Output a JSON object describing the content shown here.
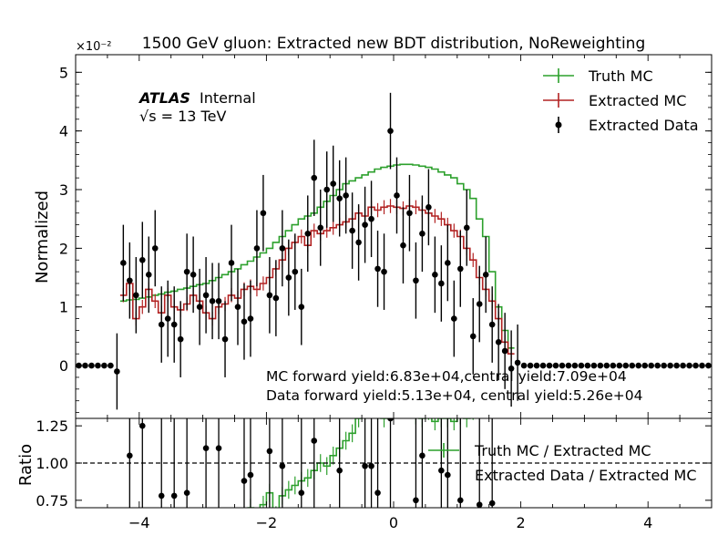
{
  "chart_data": [
    {
      "type": "histogram-step",
      "title": "1500 GeV gluon: Extracted new BDT distribution, NoReweighting",
      "scale_label": "×10⁻²",
      "ylabel": "Normalized",
      "xlim": [
        -5,
        5
      ],
      "ylim": [
        -0.9,
        5.3
      ],
      "yticks": [
        0,
        1,
        2,
        3,
        4,
        5
      ],
      "atlas_bold": "ATLAS",
      "atlas_rest": "Internal",
      "energy_label": "√s = 13 TeV",
      "annotations": [
        "MC forward yield:6.83e+04,central yield:7.09e+04",
        "Data forward yield:5.13e+04, central yield:5.26e+04"
      ],
      "legend_position": "top-right",
      "series": [
        {
          "name": "Truth MC",
          "color": "#2ca02c",
          "kind": "step",
          "x_start": -4.3,
          "x_step": 0.1,
          "values": [
            1.1,
            1.12,
            1.13,
            1.15,
            1.17,
            1.2,
            1.22,
            1.25,
            1.27,
            1.3,
            1.32,
            1.35,
            1.38,
            1.4,
            1.45,
            1.5,
            1.55,
            1.6,
            1.65,
            1.72,
            1.78,
            1.85,
            1.92,
            2.0,
            2.1,
            2.2,
            2.3,
            2.4,
            2.5,
            2.55,
            2.6,
            2.7,
            2.8,
            2.9,
            3.0,
            3.1,
            3.15,
            3.2,
            3.25,
            3.3,
            3.35,
            3.38,
            3.4,
            3.42,
            3.43,
            3.43,
            3.42,
            3.4,
            3.38,
            3.35,
            3.3,
            3.25,
            3.2,
            3.1,
            3.0,
            2.85,
            2.5,
            2.2,
            1.6,
            1.0,
            0.6,
            0.3
          ]
        },
        {
          "name": "Extracted MC",
          "color": "#b22222",
          "kind": "step",
          "x_start": -4.3,
          "x_step": 0.1,
          "values": [
            1.2,
            1.4,
            0.8,
            1.0,
            1.3,
            1.1,
            0.9,
            1.2,
            1.0,
            0.95,
            1.05,
            1.2,
            1.1,
            0.9,
            0.8,
            1.0,
            1.05,
            1.2,
            1.15,
            1.3,
            1.35,
            1.3,
            1.4,
            1.5,
            1.65,
            1.8,
            2.0,
            2.1,
            2.2,
            2.05,
            2.3,
            2.25,
            2.3,
            2.35,
            2.4,
            2.45,
            2.5,
            2.6,
            2.55,
            2.7,
            2.65,
            2.7,
            2.72,
            2.7,
            2.68,
            2.72,
            2.7,
            2.65,
            2.6,
            2.55,
            2.5,
            2.4,
            2.3,
            2.2,
            2.0,
            1.8,
            1.5,
            1.3,
            1.1,
            0.8,
            0.4,
            0.2
          ]
        },
        {
          "name": "Extracted Data",
          "color": "#000000",
          "kind": "points",
          "points": [
            [
              -4.95,
              0
            ],
            [
              -4.85,
              0
            ],
            [
              -4.75,
              0
            ],
            [
              -4.65,
              0
            ],
            [
              -4.55,
              0
            ],
            [
              -4.45,
              0
            ],
            [
              -4.35,
              -0.1
            ],
            [
              -4.25,
              1.75
            ],
            [
              -4.15,
              1.45
            ],
            [
              -4.05,
              1.2
            ],
            [
              -3.95,
              1.8
            ],
            [
              -3.85,
              1.55
            ],
            [
              -3.75,
              2.0
            ],
            [
              -3.65,
              0.7
            ],
            [
              -3.55,
              0.8
            ],
            [
              -3.45,
              0.7
            ],
            [
              -3.35,
              0.45
            ],
            [
              -3.25,
              1.6
            ],
            [
              -3.15,
              1.55
            ],
            [
              -3.05,
              1.0
            ],
            [
              -2.95,
              1.2
            ],
            [
              -2.85,
              1.1
            ],
            [
              -2.75,
              1.1
            ],
            [
              -2.65,
              0.45
            ],
            [
              -2.55,
              1.75
            ],
            [
              -2.45,
              1.0
            ],
            [
              -2.35,
              0.75
            ],
            [
              -2.25,
              0.8
            ],
            [
              -2.15,
              2.0
            ],
            [
              -2.05,
              2.6
            ],
            [
              -1.95,
              1.2
            ],
            [
              -1.85,
              1.15
            ],
            [
              -1.75,
              2.0
            ],
            [
              -1.65,
              1.5
            ],
            [
              -1.55,
              1.6
            ],
            [
              -1.45,
              1.0
            ],
            [
              -1.35,
              2.25
            ],
            [
              -1.25,
              3.2
            ],
            [
              -1.15,
              2.35
            ],
            [
              -1.05,
              3.0
            ],
            [
              -0.95,
              3.1
            ],
            [
              -0.85,
              2.85
            ],
            [
              -0.75,
              2.9
            ],
            [
              -0.65,
              2.3
            ],
            [
              -0.55,
              2.1
            ],
            [
              -0.45,
              2.4
            ],
            [
              -0.35,
              2.5
            ],
            [
              -0.25,
              1.65
            ],
            [
              -0.15,
              1.6
            ],
            [
              -0.05,
              4.0
            ],
            [
              0.05,
              2.9
            ],
            [
              0.15,
              2.05
            ],
            [
              0.25,
              2.6
            ],
            [
              0.35,
              1.45
            ],
            [
              0.45,
              2.25
            ],
            [
              0.55,
              2.7
            ],
            [
              0.65,
              1.55
            ],
            [
              0.75,
              1.4
            ],
            [
              0.85,
              1.75
            ],
            [
              0.95,
              0.8
            ],
            [
              1.05,
              1.65
            ],
            [
              1.15,
              2.35
            ],
            [
              1.25,
              0.5
            ],
            [
              1.35,
              1.05
            ],
            [
              1.45,
              1.55
            ],
            [
              1.55,
              0.7
            ],
            [
              1.65,
              0.4
            ],
            [
              1.75,
              0.25
            ],
            [
              1.85,
              -0.05
            ],
            [
              1.95,
              0.05
            ],
            [
              2.05,
              0
            ],
            [
              2.15,
              0
            ],
            [
              2.25,
              0
            ],
            [
              2.35,
              0
            ],
            [
              2.45,
              0
            ],
            [
              2.55,
              0
            ],
            [
              2.65,
              0
            ],
            [
              2.75,
              0
            ],
            [
              2.85,
              0
            ],
            [
              2.95,
              0
            ],
            [
              3.05,
              0
            ],
            [
              3.15,
              0
            ],
            [
              3.25,
              0
            ],
            [
              3.35,
              0
            ],
            [
              3.45,
              0
            ],
            [
              3.55,
              0
            ],
            [
              3.65,
              0
            ],
            [
              3.75,
              0
            ],
            [
              3.85,
              0
            ],
            [
              3.95,
              0
            ],
            [
              4.05,
              0
            ],
            [
              4.15,
              0
            ],
            [
              4.25,
              0
            ],
            [
              4.35,
              0
            ],
            [
              4.45,
              0
            ],
            [
              4.55,
              0
            ],
            [
              4.65,
              0
            ],
            [
              4.75,
              0
            ],
            [
              4.85,
              0
            ],
            [
              4.95,
              0
            ]
          ]
        }
      ]
    },
    {
      "type": "ratio",
      "ylabel": "Ratio",
      "xlim": [
        -5,
        5
      ],
      "ylim": [
        0.7,
        1.3
      ],
      "yticks": [
        "0.75",
        "1.00",
        "1.25"
      ],
      "ytick_values": [
        0.75,
        1.0,
        1.25
      ],
      "xticks": [
        "−4",
        "−2",
        "0",
        "2",
        "4"
      ],
      "xtick_values": [
        -4,
        -2,
        0,
        2,
        4
      ],
      "reference_line": 1.0,
      "legend_position": "right",
      "series": [
        {
          "name": "Truth MC / Extracted MC",
          "color": "#2ca02c",
          "kind": "step",
          "x_start": -2.3,
          "x_step": 0.1,
          "values": [
            0.7,
            0.6,
            0.72,
            0.8,
            0.65,
            0.78,
            0.82,
            0.85,
            0.88,
            0.9,
            0.95,
            1.0,
            0.98,
            1.05,
            1.1,
            1.15,
            1.2,
            1.3,
            1.35,
            1.4,
            1.35,
            1.3,
            1.35,
            1.4,
            1.38,
            1.4,
            1.32,
            1.3,
            1.35,
            1.28,
            1.3,
            1.3,
            1.28,
            1.32,
            1.3,
            1.35,
            1.4,
            1.45
          ]
        },
        {
          "name": "Extracted Data / Extracted MC",
          "color": "#000000",
          "kind": "points",
          "points": [
            [
              -4.15,
              1.05
            ],
            [
              -3.95,
              1.25
            ],
            [
              -3.65,
              0.78
            ],
            [
              -3.45,
              0.78
            ],
            [
              -3.25,
              0.8
            ],
            [
              -2.95,
              1.1
            ],
            [
              -2.75,
              1.1
            ],
            [
              -2.35,
              0.88
            ],
            [
              -2.25,
              0.92
            ],
            [
              -1.95,
              1.08
            ],
            [
              -1.75,
              0.98
            ],
            [
              -1.45,
              0.8
            ],
            [
              -1.25,
              1.15
            ],
            [
              -0.85,
              0.95
            ],
            [
              -0.45,
              0.98
            ],
            [
              -0.35,
              0.98
            ],
            [
              -0.25,
              0.8
            ],
            [
              -0.05,
              1.3
            ],
            [
              0.35,
              0.75
            ],
            [
              0.45,
              1.05
            ],
            [
              0.75,
              0.95
            ],
            [
              0.85,
              0.92
            ],
            [
              1.05,
              0.75
            ],
            [
              1.35,
              0.72
            ],
            [
              1.55,
              0.73
            ]
          ]
        }
      ]
    }
  ]
}
